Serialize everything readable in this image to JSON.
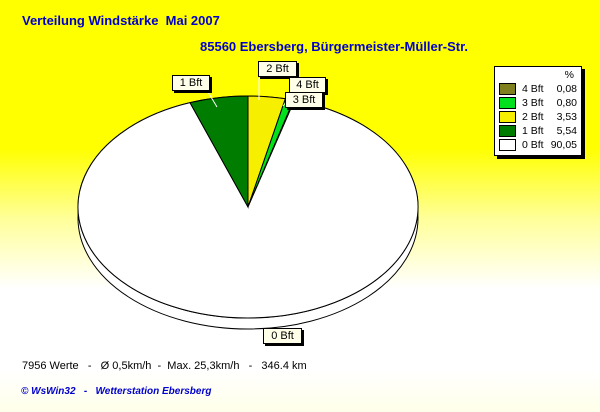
{
  "header": {
    "title": "Verteilung Windstärke  Mai 2007",
    "subtitle": "85560 Ebersberg, Bürgermeister-Müller-Str.",
    "text_color": "#0000CD"
  },
  "chart_data": {
    "type": "pie",
    "style": "3d-pie",
    "title": "Verteilung Windstärke  Mai 2007",
    "unit": "%",
    "categories": [
      "4 Bft",
      "3 Bft",
      "2 Bft",
      "1 Bft",
      "0 Bft"
    ],
    "values": [
      0.08,
      0.8,
      3.53,
      5.54,
      90.05
    ],
    "display_values": [
      "0,08",
      "0,80",
      "3,53",
      "5,54",
      "90,05"
    ],
    "colors": {
      "4 Bft": "#7F7F1F",
      "3 Bft": "#00E01C",
      "2 Bft": "#F7EF00",
      "1 Bft": "#007C00",
      "0 Bft": "#FFFFFF"
    },
    "draw_order": [
      "2 Bft",
      "3 Bft",
      "4 Bft",
      "0 Bft",
      "1 Bft"
    ],
    "start_angle_deg": 0,
    "direction": "clockwise",
    "legend_position": "top-right",
    "outline_color": "#000000"
  },
  "legend": {
    "header": "%",
    "entries": [
      {
        "label": "4 Bft",
        "value": "0,08",
        "color": "#7F7F1F"
      },
      {
        "label": "3 Bft",
        "value": "0,80",
        "color": "#00E01C"
      },
      {
        "label": "2 Bft",
        "value": "3,53",
        "color": "#F7EF00"
      },
      {
        "label": "1 Bft",
        "value": "5,54",
        "color": "#007C00"
      },
      {
        "label": "0 Bft",
        "value": "90,05",
        "color": "#FFFFFF"
      }
    ]
  },
  "footer": {
    "stats": "7956 Werte   -   Ø 0,5km/h  -  Max. 25,3km/h   -   346.4 km",
    "copyright": "© WsWin32   -   Wetterstation Ebersberg"
  }
}
